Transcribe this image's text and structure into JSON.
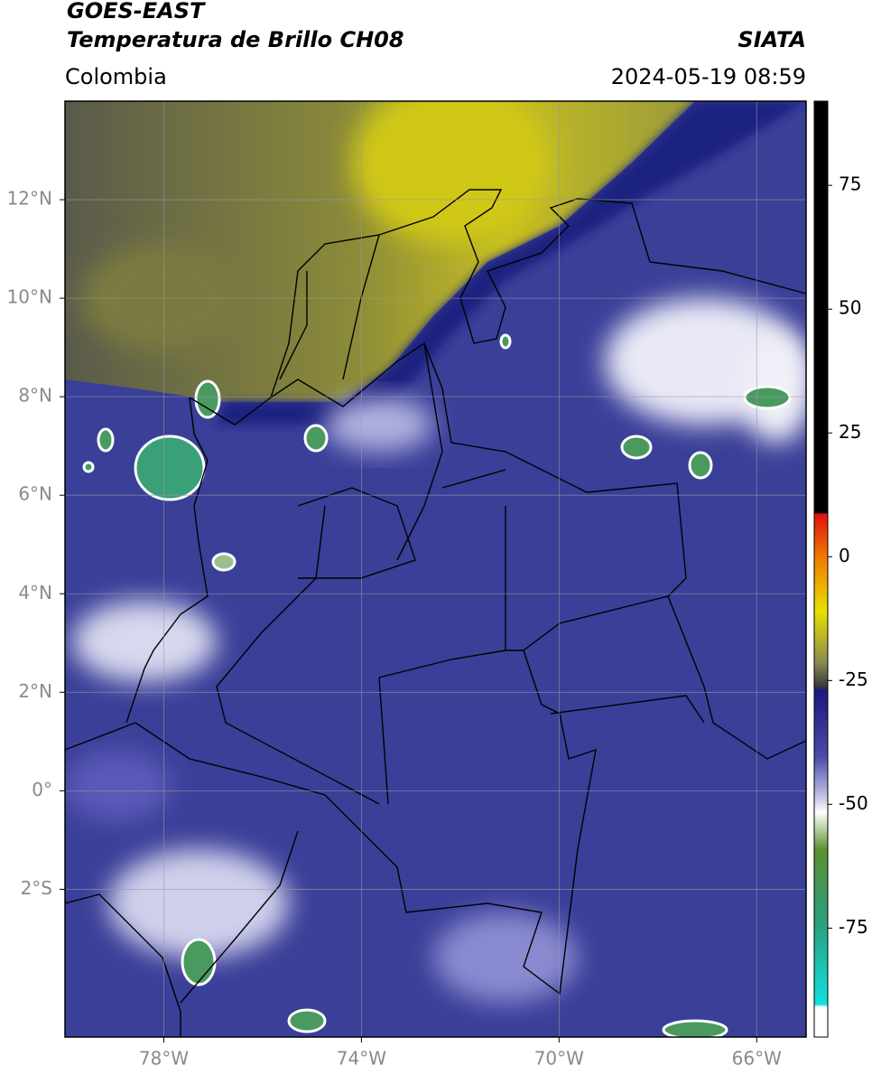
{
  "header": {
    "title": "GOES-EAST",
    "subtitle": "Temperatura de Brillo CH08",
    "source": "SIATA",
    "region": "Colombia",
    "datetime": "2024-05-19 08:59"
  },
  "map": {
    "xlim": [
      -80,
      -65
    ],
    "ylim": [
      -5,
      14
    ],
    "xticks": [
      {
        "value": -78,
        "label": "78°W"
      },
      {
        "value": -74,
        "label": "74°W"
      },
      {
        "value": -70,
        "label": "70°W"
      },
      {
        "value": -66,
        "label": "66°W"
      }
    ],
    "yticks": [
      {
        "value": 12,
        "label": "12°N"
      },
      {
        "value": 10,
        "label": "10°N"
      },
      {
        "value": 8,
        "label": "8°N"
      },
      {
        "value": 6,
        "label": "6°N"
      },
      {
        "value": 4,
        "label": "4°N"
      },
      {
        "value": 2,
        "label": "2°N"
      },
      {
        "value": 0,
        "label": "0°"
      },
      {
        "value": -2,
        "label": "2°S"
      }
    ],
    "grid": true
  },
  "colorbar": {
    "lim": [
      -97,
      92
    ],
    "ticks": [
      75,
      50,
      25,
      0,
      -25,
      -50,
      -75
    ]
  }
}
